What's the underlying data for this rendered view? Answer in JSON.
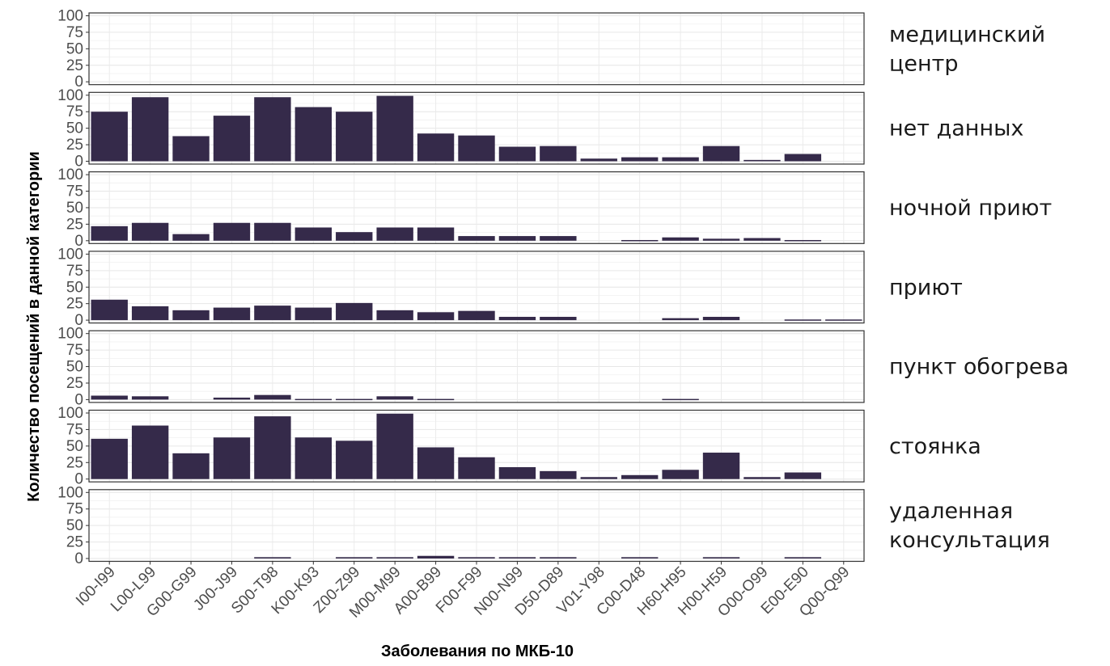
{
  "chart_data": {
    "type": "bar",
    "xlabel": "Заболевания по МКБ-10",
    "ylabel": "Количество посещений в данной категории",
    "ylim": [
      0,
      100
    ],
    "yticks": [
      0,
      25,
      50,
      75,
      100
    ],
    "grid": true,
    "bar_color": "#352a4a",
    "categories": [
      "I00-I99",
      "L00-L99",
      "G00-G99",
      "J00-J99",
      "S00-T98",
      "K00-K93",
      "Z00-Z99",
      "M00-M99",
      "A00-B99",
      "F00-F99",
      "N00-N99",
      "D50-D89",
      "V01-Y98",
      "C00-D48",
      "H60-H95",
      "H00-H59",
      "O00-O99",
      "E00-E90",
      "Q00-Q99"
    ],
    "facets": [
      {
        "label": [
          "медицинский",
          "центр"
        ],
        "values": [
          0,
          0,
          0,
          0,
          0,
          0,
          0,
          0,
          0,
          0,
          0,
          0,
          0,
          0,
          0,
          0,
          0,
          0,
          0
        ]
      },
      {
        "label": [
          "нет данных"
        ],
        "values": [
          75,
          97,
          38,
          69,
          97,
          82,
          75,
          99,
          42,
          39,
          22,
          23,
          4,
          6,
          6,
          23,
          2,
          11,
          0
        ]
      },
      {
        "label": [
          "ночной приют"
        ],
        "values": [
          22,
          27,
          10,
          27,
          27,
          20,
          13,
          20,
          20,
          7,
          7,
          7,
          0,
          1,
          5,
          3,
          4,
          1,
          0
        ]
      },
      {
        "label": [
          "приют"
        ],
        "values": [
          31,
          21,
          15,
          19,
          22,
          19,
          26,
          15,
          12,
          14,
          5,
          5,
          0,
          0,
          3,
          5,
          0,
          1,
          1
        ]
      },
      {
        "label": [
          "пункт обогрева"
        ],
        "values": [
          6,
          5,
          0,
          3,
          7,
          1,
          1,
          5,
          1,
          0,
          0,
          0,
          0,
          0,
          1,
          0,
          0,
          0,
          0
        ]
      },
      {
        "label": [
          "стоянка"
        ],
        "values": [
          61,
          81,
          39,
          63,
          95,
          63,
          58,
          99,
          48,
          33,
          18,
          12,
          3,
          6,
          14,
          40,
          3,
          10,
          0
        ]
      },
      {
        "label": [
          "удаленная",
          "консультация"
        ],
        "values": [
          0,
          0,
          0,
          0,
          2,
          0,
          2,
          2,
          4,
          2,
          2,
          2,
          0,
          2,
          0,
          2,
          0,
          2,
          0
        ]
      }
    ]
  }
}
